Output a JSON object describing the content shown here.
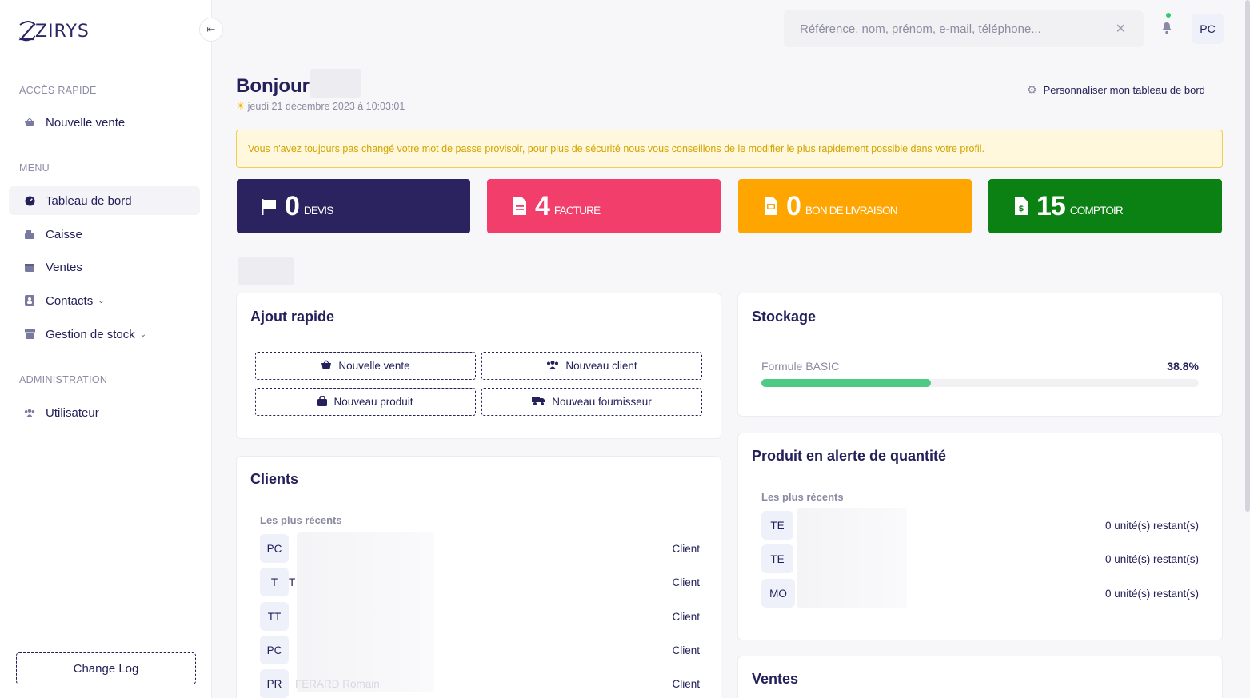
{
  "brand": {
    "name": "ZIRYS"
  },
  "sidebar": {
    "quick_access_title": "ACCÈS RAPIDE",
    "quick_access": [
      {
        "label": "Nouvelle vente",
        "icon": "basket-icon"
      }
    ],
    "menu_title": "MENU",
    "menu": [
      {
        "label": "Tableau de bord",
        "icon": "dashboard-icon",
        "active": true
      },
      {
        "label": "Caisse",
        "icon": "cash-register-icon"
      },
      {
        "label": "Ventes",
        "icon": "calendar-icon"
      },
      {
        "label": "Contacts",
        "icon": "address-book-icon",
        "has_submenu": true
      },
      {
        "label": "Gestion de stock",
        "icon": "archive-icon",
        "has_submenu": true
      }
    ],
    "admin_title": "ADMINISTRATION",
    "admin": [
      {
        "label": "Utilisateur",
        "icon": "users-icon"
      }
    ],
    "changelog_label": "Change Log"
  },
  "topbar": {
    "search_placeholder": "Référence, nom, prénom, e-mail, téléphone...",
    "user_initials": "PC"
  },
  "header": {
    "greeting": "Bonjour",
    "date": "jeudi 21 décembre 2023 à 10:03:01",
    "customize_label": "Personnaliser mon tableau de bord"
  },
  "alert": {
    "text": "Vous n'avez toujours pas changé votre mot de passe provisoir, pour plus de sécurité nous vous conseillons de le modifier le plus rapidement possible dans votre profil."
  },
  "stats": [
    {
      "value": "0",
      "label": "DEVIS",
      "color": "#2a235f",
      "icon": "flag-icon"
    },
    {
      "value": "4",
      "label": "FACTURE",
      "color": "#f23e6b",
      "icon": "invoice-icon"
    },
    {
      "value": "0",
      "label": "BON DE LIVRAISON",
      "color": "#ffa500",
      "icon": "delivery-note-icon"
    },
    {
      "value": "15",
      "label": "COMPTOIR",
      "color": "#0b8013",
      "icon": "receipt-dollar-icon"
    }
  ],
  "quick_add": {
    "title": "Ajout rapide",
    "buttons": [
      {
        "label": "Nouvelle vente",
        "icon": "basket-icon"
      },
      {
        "label": "Nouveau client",
        "icon": "users-icon"
      },
      {
        "label": "Nouveau produit",
        "icon": "shopping-bag-icon"
      },
      {
        "label": "Nouveau fournisseur",
        "icon": "truck-icon"
      }
    ]
  },
  "clients": {
    "title": "Clients",
    "subtitle": "Les plus récents",
    "rows": [
      {
        "initials": "PC",
        "name": "",
        "type": "Client"
      },
      {
        "initials": "T",
        "name": "T",
        "type": "Client"
      },
      {
        "initials": "TT",
        "name": "",
        "type": "Client"
      },
      {
        "initials": "PC",
        "name": "",
        "type": "Client"
      },
      {
        "initials": "PR",
        "name": "FERARD Romain",
        "type": "Client"
      }
    ]
  },
  "storage": {
    "title": "Stockage",
    "plan": "Formule BASIC",
    "percent_label": "38.8%",
    "percent": 38.8,
    "color": "#4dca83"
  },
  "alerts_products": {
    "title": "Produit en alerte de quantité",
    "subtitle": "Les plus récents",
    "rows": [
      {
        "initials": "TE",
        "qty": "0 unité(s) restant(s)"
      },
      {
        "initials": "TE",
        "qty": "0 unité(s) restant(s)"
      },
      {
        "initials": "MO",
        "qty": "0 unité(s) restant(s)"
      }
    ]
  },
  "sales": {
    "title": "Ventes"
  }
}
